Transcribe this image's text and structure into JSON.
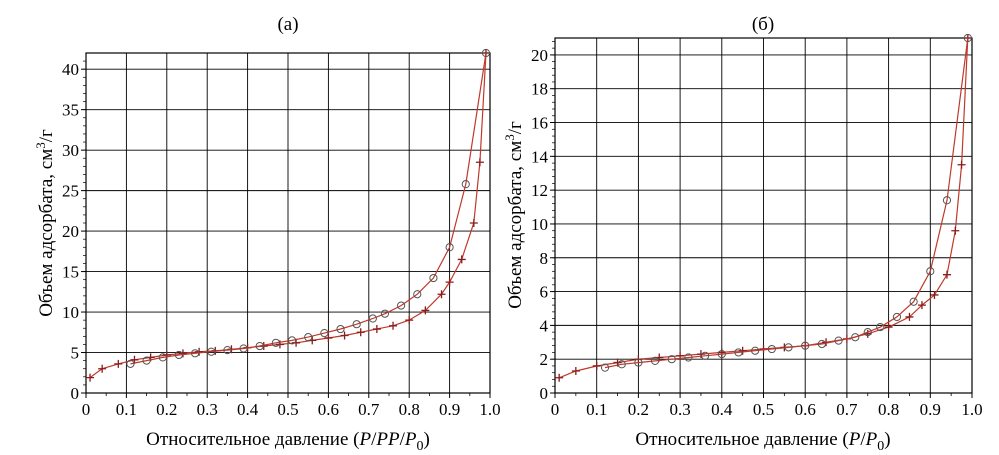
{
  "chart_data": [
    {
      "panel": "(а)",
      "type": "line",
      "title": "(а)",
      "xlabel_main": "Относительное давление (",
      "xlabel_tail": ")",
      "xlabel_math": [
        "P",
        "/",
        "PP",
        "/",
        "P",
        "0"
      ],
      "ylabel_main": "Объем адсорбата, см",
      "ylabel_sup": "3",
      "ylabel_tail": "/г",
      "xlim": [
        0,
        1.0
      ],
      "ylim": [
        0,
        42
      ],
      "xticks": [
        0,
        0.1,
        0.2,
        0.3,
        0.4,
        0.5,
        0.6,
        0.7,
        0.8,
        0.9,
        1.0
      ],
      "xtick_labels": [
        "0",
        "0.1",
        "0.2",
        "0.3",
        "0.4",
        "0.5",
        "0.6",
        "0.7",
        "0.8",
        "0.9",
        "1.0"
      ],
      "yticks": [
        0,
        5,
        10,
        15,
        20,
        25,
        30,
        35,
        40
      ],
      "ytick_labels": [
        "0",
        "5",
        "10",
        "15",
        "20",
        "25",
        "30",
        "35",
        "40"
      ],
      "grid": true,
      "line_color": "#c0392b",
      "series": [
        {
          "marker": "plus",
          "x": [
            0.01,
            0.04,
            0.08,
            0.12,
            0.16,
            0.2,
            0.24,
            0.28,
            0.32,
            0.36,
            0.4,
            0.44,
            0.48,
            0.52,
            0.56,
            0.6,
            0.64,
            0.68,
            0.72,
            0.76,
            0.8,
            0.84,
            0.88,
            0.9,
            0.93,
            0.96,
            0.975,
            0.99
          ],
          "y": [
            1.9,
            3.0,
            3.6,
            4.1,
            4.4,
            4.7,
            4.9,
            5.1,
            5.2,
            5.4,
            5.6,
            5.8,
            6.0,
            6.2,
            6.5,
            6.8,
            7.1,
            7.5,
            7.9,
            8.3,
            9.0,
            10.2,
            12.2,
            13.7,
            16.5,
            21.0,
            28.5,
            42.0
          ]
        },
        {
          "marker": "circle",
          "x": [
            0.11,
            0.15,
            0.19,
            0.23,
            0.27,
            0.31,
            0.35,
            0.39,
            0.43,
            0.47,
            0.51,
            0.55,
            0.59,
            0.63,
            0.67,
            0.71,
            0.74,
            0.78,
            0.82,
            0.86,
            0.9,
            0.94,
            0.99
          ],
          "y": [
            3.6,
            4.0,
            4.4,
            4.7,
            4.9,
            5.1,
            5.3,
            5.5,
            5.8,
            6.2,
            6.5,
            6.9,
            7.4,
            7.9,
            8.5,
            9.2,
            9.8,
            10.8,
            12.2,
            14.2,
            18.0,
            25.8,
            42.0
          ]
        }
      ]
    },
    {
      "panel": "(б)",
      "type": "line",
      "title": "(б)",
      "xlabel_main": "Относительное давление (",
      "xlabel_tail": ")",
      "xlabel_math": [
        "P",
        "/",
        "P",
        "0"
      ],
      "ylabel_main": "Объем адсорбата, см",
      "ylabel_sup": "3",
      "ylabel_tail": "/г",
      "xlim": [
        0,
        1.0
      ],
      "ylim": [
        0,
        21
      ],
      "xticks": [
        0,
        0.1,
        0.2,
        0.3,
        0.4,
        0.5,
        0.6,
        0.7,
        0.8,
        0.9,
        1.0
      ],
      "xtick_labels": [
        "0",
        "0.1",
        "0.2",
        "0.3",
        "0.4",
        "0.5",
        "0.6",
        "0.7",
        "0.8",
        "0.9",
        "1.0"
      ],
      "yticks": [
        0,
        2,
        4,
        6,
        8,
        10,
        12,
        14,
        16,
        18,
        20
      ],
      "ytick_labels": [
        "0",
        "2",
        "4",
        "6",
        "8",
        "10",
        "12",
        "14",
        "16",
        "18",
        "20"
      ],
      "grid": true,
      "line_color": "#c0392b",
      "series": [
        {
          "marker": "plus",
          "x": [
            0.01,
            0.05,
            0.1,
            0.15,
            0.2,
            0.25,
            0.3,
            0.35,
            0.4,
            0.45,
            0.5,
            0.55,
            0.6,
            0.65,
            0.7,
            0.75,
            0.8,
            0.85,
            0.88,
            0.91,
            0.94,
            0.96,
            0.975,
            0.99
          ],
          "y": [
            0.9,
            1.3,
            1.6,
            1.8,
            2.0,
            2.1,
            2.2,
            2.3,
            2.4,
            2.5,
            2.6,
            2.7,
            2.8,
            3.0,
            3.2,
            3.5,
            3.9,
            4.5,
            5.2,
            5.8,
            7.0,
            9.6,
            13.5,
            21.0
          ]
        },
        {
          "marker": "circle",
          "x": [
            0.12,
            0.16,
            0.2,
            0.24,
            0.28,
            0.32,
            0.36,
            0.4,
            0.44,
            0.48,
            0.52,
            0.56,
            0.6,
            0.64,
            0.68,
            0.72,
            0.75,
            0.78,
            0.82,
            0.86,
            0.9,
            0.94,
            0.99
          ],
          "y": [
            1.5,
            1.7,
            1.8,
            1.9,
            2.0,
            2.1,
            2.2,
            2.3,
            2.4,
            2.5,
            2.6,
            2.7,
            2.8,
            2.9,
            3.1,
            3.3,
            3.6,
            3.9,
            4.5,
            5.4,
            7.2,
            11.4,
            21.0
          ]
        }
      ]
    }
  ]
}
